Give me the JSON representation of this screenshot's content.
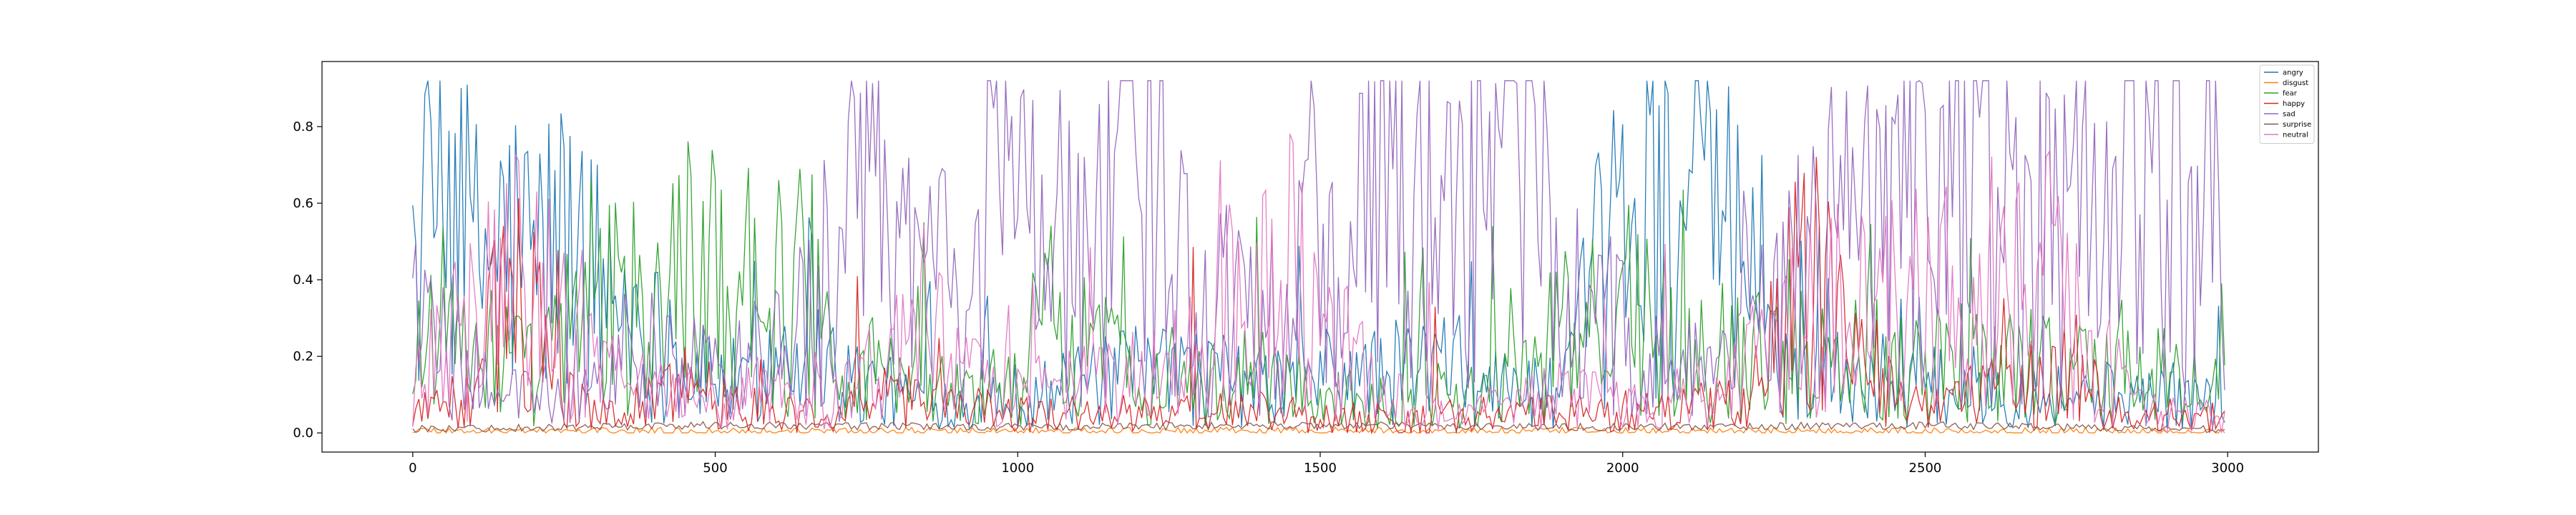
{
  "chart_data": {
    "type": "line",
    "title": "",
    "xlabel": "",
    "ylabel": "",
    "xlim": [
      -150,
      3150
    ],
    "ylim": [
      -0.05,
      0.97
    ],
    "xticks": [
      0,
      500,
      1000,
      1500,
      2000,
      2500,
      3000
    ],
    "xtick_labels": [
      "0",
      "500",
      "1000",
      "1500",
      "2000",
      "2500",
      "3000"
    ],
    "yticks": [
      0.0,
      0.2,
      0.4,
      0.6,
      0.8
    ],
    "ytick_labels": [
      "0.0",
      "0.2",
      "0.4",
      "0.6",
      "0.8"
    ],
    "grid": false,
    "legend_position": "top-right",
    "n_points": 3000,
    "x_step": 5,
    "series": [
      {
        "name": "angry",
        "color": "#1f77b4",
        "x": [
          0,
          20,
          40,
          60,
          80,
          100,
          150,
          200,
          250,
          300,
          350,
          400,
          450,
          500,
          550,
          600,
          650,
          700,
          800,
          900,
          1000,
          1100,
          1200,
          1300,
          1400,
          1500,
          1600,
          1700,
          1800,
          1900,
          1950,
          2000,
          2050,
          2100,
          2150,
          2200,
          2250,
          2300,
          2400,
          2500,
          2600,
          2700,
          2800,
          2900,
          3000
        ],
        "y": [
          0.35,
          0.55,
          0.65,
          0.6,
          0.55,
          0.45,
          0.5,
          0.45,
          0.5,
          0.4,
          0.35,
          0.25,
          0.15,
          0.15,
          0.12,
          0.2,
          0.35,
          0.15,
          0.1,
          0.08,
          0.1,
          0.12,
          0.15,
          0.15,
          0.12,
          0.15,
          0.15,
          0.18,
          0.12,
          0.1,
          0.35,
          0.55,
          0.6,
          0.62,
          0.6,
          0.45,
          0.2,
          0.15,
          0.15,
          0.12,
          0.12,
          0.1,
          0.1,
          0.1,
          0.07
        ]
      },
      {
        "name": "disgust",
        "color": "#ff7f0e",
        "x": [
          0,
          500,
          1000,
          1500,
          2000,
          2500,
          3000
        ],
        "y": [
          0.005,
          0.005,
          0.004,
          0.005,
          0.004,
          0.005,
          0.004
        ]
      },
      {
        "name": "fear",
        "color": "#2ca02c",
        "x": [
          0,
          50,
          100,
          150,
          200,
          250,
          300,
          350,
          400,
          450,
          500,
          550,
          600,
          650,
          700,
          800,
          900,
          1000,
          1050,
          1100,
          1200,
          1300,
          1400,
          1500,
          1600,
          1700,
          1800,
          1900,
          2000,
          2100,
          2200,
          2300,
          2400,
          2500,
          2600,
          2700,
          2800,
          2900,
          3000
        ],
        "y": [
          0.2,
          0.3,
          0.25,
          0.2,
          0.15,
          0.25,
          0.3,
          0.35,
          0.3,
          0.45,
          0.4,
          0.45,
          0.35,
          0.4,
          0.2,
          0.15,
          0.1,
          0.15,
          0.3,
          0.25,
          0.15,
          0.12,
          0.15,
          0.1,
          0.08,
          0.1,
          0.12,
          0.25,
          0.3,
          0.25,
          0.2,
          0.2,
          0.22,
          0.18,
          0.2,
          0.18,
          0.15,
          0.15,
          0.12
        ]
      },
      {
        "name": "happy",
        "color": "#d62728",
        "x": [
          0,
          100,
          150,
          200,
          250,
          300,
          400,
          450,
          500,
          600,
          700,
          800,
          900,
          1000,
          1200,
          1400,
          1600,
          1800,
          2000,
          2200,
          2280,
          2320,
          2400,
          2500,
          2600,
          2700,
          2750,
          2800,
          3000
        ],
        "y": [
          0.05,
          0.1,
          0.35,
          0.3,
          0.1,
          0.05,
          0.08,
          0.15,
          0.1,
          0.05,
          0.05,
          0.1,
          0.08,
          0.05,
          0.05,
          0.06,
          0.03,
          0.05,
          0.05,
          0.08,
          0.35,
          0.4,
          0.15,
          0.08,
          0.1,
          0.12,
          0.2,
          0.05,
          0.03
        ]
      },
      {
        "name": "sad",
        "color": "#9467bd",
        "x": [
          0,
          100,
          200,
          300,
          400,
          500,
          600,
          650,
          700,
          750,
          800,
          850,
          900,
          950,
          1000,
          1050,
          1100,
          1150,
          1200,
          1250,
          1300,
          1350,
          1400,
          1450,
          1500,
          1550,
          1600,
          1650,
          1700,
          1750,
          1800,
          1850,
          1900,
          1950,
          2000,
          2100,
          2200,
          2250,
          2300,
          2350,
          2400,
          2450,
          2500,
          2550,
          2600,
          2650,
          2700,
          2750,
          2800,
          2850,
          2900,
          2950,
          3000
        ],
        "y": [
          0.3,
          0.15,
          0.1,
          0.1,
          0.2,
          0.15,
          0.2,
          0.3,
          0.5,
          0.6,
          0.45,
          0.5,
          0.3,
          0.75,
          0.55,
          0.65,
          0.45,
          0.5,
          0.75,
          0.6,
          0.3,
          0.4,
          0.3,
          0.4,
          0.55,
          0.65,
          0.7,
          0.6,
          0.75,
          0.7,
          0.65,
          0.75,
          0.2,
          0.3,
          0.25,
          0.15,
          0.2,
          0.3,
          0.45,
          0.5,
          0.55,
          0.6,
          0.5,
          0.65,
          0.7,
          0.55,
          0.6,
          0.65,
          0.4,
          0.8,
          0.75,
          0.7,
          0.8
        ]
      },
      {
        "name": "surprise",
        "color": "#8c564b",
        "x": [
          0,
          500,
          1000,
          1500,
          2000,
          2500,
          3000
        ],
        "y": [
          0.01,
          0.02,
          0.015,
          0.02,
          0.015,
          0.02,
          0.01
        ]
      },
      {
        "name": "neutral",
        "color": "#e377c2",
        "x": [
          0,
          50,
          100,
          150,
          200,
          250,
          300,
          400,
          500,
          600,
          700,
          800,
          850,
          900,
          1000,
          1100,
          1200,
          1300,
          1350,
          1400,
          1450,
          1500,
          1600,
          1700,
          1800,
          1900,
          2000,
          2100,
          2200,
          2250,
          2300,
          2400,
          2500,
          2600,
          2700,
          2800,
          2900,
          3000
        ],
        "y": [
          0.15,
          0.2,
          0.3,
          0.45,
          0.35,
          0.3,
          0.15,
          0.1,
          0.08,
          0.1,
          0.08,
          0.2,
          0.3,
          0.15,
          0.1,
          0.12,
          0.15,
          0.2,
          0.4,
          0.35,
          0.45,
          0.3,
          0.1,
          0.05,
          0.08,
          0.1,
          0.08,
          0.1,
          0.15,
          0.3,
          0.35,
          0.3,
          0.35,
          0.3,
          0.4,
          0.15,
          0.05,
          0.03
        ]
      }
    ]
  }
}
